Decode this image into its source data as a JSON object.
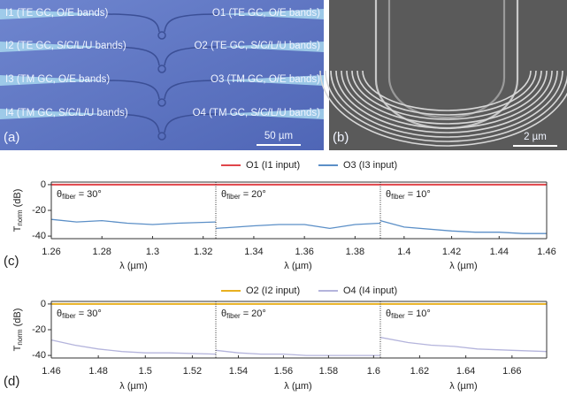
{
  "images": [
    {
      "panel_label": "(a)",
      "scale_bar": "50 µm",
      "labels": [
        "I1 (TE GC, O/E bands)",
        "O1 (TE GC, O/E bands)",
        "I2 (TE GC, S/C/L/U bands)",
        "O2 (TE GC, S/C/L/U bands)",
        "I3 (TM GC, O/E bands)",
        "O3 (TM GC, O/E bands)",
        "I4 (TM GC, S/C/L/U bands)",
        "O4 (TM GC, S/C/L/U bands)"
      ]
    },
    {
      "panel_label": "(b)",
      "scale_bar": "2 µm"
    }
  ],
  "chart_data": [
    {
      "type": "line",
      "panel_label": "(c)",
      "ylabel": {
        "main": "T",
        "sub": "norm",
        "unit": "(dB)"
      },
      "ylim": [
        -42,
        2
      ],
      "yticks": [
        0,
        -20,
        -40
      ],
      "series": [
        {
          "name": "O1 (I1 input)",
          "color": "#e0454a",
          "values": [
            [
              0,
              0,
              0,
              0,
              0,
              0,
              0
            ],
            [
              0,
              0,
              0,
              0,
              0,
              0,
              0
            ],
            [
              0,
              0,
              0,
              0,
              0,
              0,
              0
            ]
          ]
        },
        {
          "name": "O3 (I3 input)",
          "color": "#5b8fc7",
          "values": [
            [
              -27,
              -29,
              -28,
              -30,
              -31,
              -30,
              -29
            ],
            [
              -34,
              -32,
              -31,
              -31,
              -34,
              -31,
              -30
            ],
            [
              -28,
              -33,
              -36,
              -37,
              -37,
              -38,
              -38
            ]
          ]
        }
      ],
      "subplots": [
        {
          "xlim": [
            1.26,
            1.325
          ],
          "xticks": [
            1.26,
            1.28,
            1.3,
            1.32
          ],
          "xlabel": "λ (µm)",
          "annotation": {
            "symbol": "θ",
            "sub": "fiber",
            "text": "= 30°"
          },
          "x": [
            1.26,
            1.27,
            1.28,
            1.29,
            1.3,
            1.31,
            1.325
          ]
        },
        {
          "xlim": [
            1.325,
            1.39
          ],
          "xticks": [
            1.34,
            1.36,
            1.38
          ],
          "xlabel": "λ (µm)",
          "annotation": {
            "symbol": "θ",
            "sub": "fiber",
            "text": "= 20°"
          },
          "x": [
            1.325,
            1.34,
            1.35,
            1.36,
            1.37,
            1.38,
            1.39
          ]
        },
        {
          "xlim": [
            1.39,
            1.46
          ],
          "xticks": [
            1.4,
            1.42,
            1.44,
            1.46
          ],
          "xlabel": "λ (µm)",
          "annotation": {
            "symbol": "θ",
            "sub": "fiber",
            "text": "= 10°"
          },
          "x": [
            1.39,
            1.4,
            1.42,
            1.43,
            1.44,
            1.45,
            1.46
          ]
        }
      ]
    },
    {
      "type": "line",
      "panel_label": "(d)",
      "ylabel": {
        "main": "T",
        "sub": "norm",
        "unit": "(dB)"
      },
      "ylim": [
        -42,
        2
      ],
      "yticks": [
        0,
        -20,
        -40
      ],
      "series": [
        {
          "name": "O2 (I2 input)",
          "color": "#e8b020",
          "values": [
            [
              0,
              0,
              0,
              0,
              0,
              0,
              0
            ],
            [
              0,
              0,
              0,
              0,
              0,
              0,
              0
            ],
            [
              0,
              0,
              0,
              0,
              0,
              0,
              0
            ]
          ]
        },
        {
          "name": "O4 (I4 input)",
          "color": "#b4b4dc",
          "values": [
            [
              -28,
              -32,
              -35,
              -37,
              -38,
              -38,
              -39
            ],
            [
              -36,
              -38,
              -39,
              -39,
              -40,
              -40,
              -40
            ],
            [
              -26,
              -30,
              -32,
              -33,
              -35,
              -36,
              -37
            ]
          ]
        }
      ],
      "subplots": [
        {
          "xlim": [
            1.46,
            1.53
          ],
          "xticks": [
            1.46,
            1.48,
            1.5,
            1.52
          ],
          "xlabel": "λ (µm)",
          "annotation": {
            "symbol": "θ",
            "sub": "fiber",
            "text": "= 30°"
          },
          "x": [
            1.46,
            1.47,
            1.48,
            1.49,
            1.5,
            1.51,
            1.53
          ]
        },
        {
          "xlim": [
            1.53,
            1.603
          ],
          "xticks": [
            1.54,
            1.56,
            1.58,
            1.6
          ],
          "xlabel": "λ (µm)",
          "annotation": {
            "symbol": "θ",
            "sub": "fiber",
            "text": "= 20°"
          },
          "x": [
            1.53,
            1.54,
            1.55,
            1.56,
            1.57,
            1.59,
            1.603
          ]
        },
        {
          "xlim": [
            1.603,
            1.675
          ],
          "xticks": [
            1.62,
            1.64,
            1.66
          ],
          "xlabel": "λ (µm)",
          "annotation": {
            "symbol": "θ",
            "sub": "fiber",
            "text": "= 10°"
          },
          "x": [
            1.603,
            1.615,
            1.625,
            1.635,
            1.645,
            1.66,
            1.675
          ]
        }
      ]
    }
  ]
}
